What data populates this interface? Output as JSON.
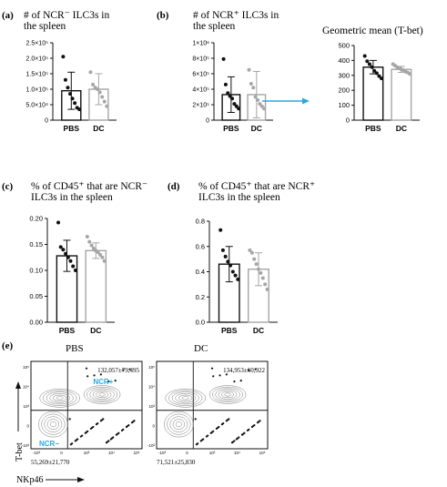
{
  "colors": {
    "black": "#111111",
    "gray": "#a6a6a6",
    "accent": "#2aa8e0"
  },
  "chart_data": [
    {
      "id": "a",
      "type": "bar",
      "panel_label": "(a)",
      "title_lines": [
        "# of NCR⁻ ILC3s in",
        "the spleen"
      ],
      "categories": [
        "PBS",
        "DC"
      ],
      "ylim": [
        0,
        250000
      ],
      "yticks": [
        {
          "value": 0,
          "label": "0"
        },
        {
          "value": 50000,
          "label": "5.0×10⁴"
        },
        {
          "value": 100000,
          "label": "1.0×10⁵"
        },
        {
          "value": 150000,
          "label": "1.5×10⁵"
        },
        {
          "value": 200000,
          "label": "2.0×10⁵"
        },
        {
          "value": 250000,
          "label": "2.5×10⁵"
        }
      ],
      "series": [
        {
          "category": "PBS",
          "mean": 95000,
          "err": 60000,
          "color": "black",
          "points": [
            205000,
            130000,
            105000,
            85000,
            70000,
            55000,
            40000,
            35000
          ]
        },
        {
          "category": "DC",
          "mean": 100000,
          "err": 50000,
          "color": "gray",
          "points": [
            155000,
            115000,
            105000,
            100000,
            90000,
            75000,
            60000,
            45000
          ]
        }
      ]
    },
    {
      "id": "b",
      "type": "bar",
      "panel_label": "(b)",
      "title_lines": [
        "# of NCR⁺ ILC3s in",
        "the spleen"
      ],
      "categories": [
        "PBS",
        "DC"
      ],
      "ylim": [
        0,
        1000000
      ],
      "yticks": [
        {
          "value": 0,
          "label": "0"
        },
        {
          "value": 200000,
          "label": "2×10⁵"
        },
        {
          "value": 400000,
          "label": "4×10⁵"
        },
        {
          "value": 600000,
          "label": "6×10⁵"
        },
        {
          "value": 800000,
          "label": "8×10⁵"
        },
        {
          "value": 1000000,
          "label": "1×10⁶"
        }
      ],
      "series": [
        {
          "category": "PBS",
          "mean": 330000,
          "err": 230000,
          "color": "black",
          "points": [
            790000,
            460000,
            350000,
            310000,
            280000,
            210000,
            180000,
            150000
          ]
        },
        {
          "category": "DC",
          "mean": 330000,
          "err": 300000,
          "color": "gray",
          "points": [
            650000,
            470000,
            420000,
            300000,
            260000,
            210000,
            180000,
            150000
          ]
        }
      ]
    },
    {
      "id": "geo",
      "type": "bar",
      "panel_label": "",
      "title_lines": [
        "Geometric mean (T-bet)"
      ],
      "categories": [
        "PBS",
        "DC"
      ],
      "ylim": [
        0,
        500
      ],
      "yticks": [
        {
          "value": 0,
          "label": "0"
        },
        {
          "value": 100,
          "label": "100"
        },
        {
          "value": 200,
          "label": "200"
        },
        {
          "value": 300,
          "label": "300"
        },
        {
          "value": 400,
          "label": "400"
        },
        {
          "value": 500,
          "label": "500"
        }
      ],
      "series": [
        {
          "category": "PBS",
          "mean": 355,
          "err": 45,
          "color": "black",
          "points": [
            430,
            395,
            375,
            355,
            330,
            315,
            295,
            280
          ]
        },
        {
          "category": "DC",
          "mean": 340,
          "err": 20,
          "color": "gray",
          "points": [
            375,
            365,
            355,
            350,
            340,
            335,
            325,
            320,
            310
          ]
        }
      ]
    },
    {
      "id": "c",
      "type": "bar",
      "panel_label": "(c)",
      "title_lines": [
        "% of CD45⁺ that are NCR⁻",
        "ILC3s in the spleen"
      ],
      "categories": [
        "PBS",
        "DC"
      ],
      "ylim": [
        0,
        0.2
      ],
      "yticks": [
        {
          "value": 0,
          "label": "0.00"
        },
        {
          "value": 0.05,
          "label": "0.05"
        },
        {
          "value": 0.1,
          "label": "0.10"
        },
        {
          "value": 0.15,
          "label": "0.15"
        },
        {
          "value": 0.2,
          "label": "0.20"
        }
      ],
      "series": [
        {
          "category": "PBS",
          "mean": 0.128,
          "err": 0.03,
          "color": "black",
          "points": [
            0.192,
            0.145,
            0.14,
            0.132,
            0.125,
            0.118,
            0.108,
            0.1
          ]
        },
        {
          "category": "DC",
          "mean": 0.138,
          "err": 0.015,
          "color": "gray",
          "points": [
            0.165,
            0.155,
            0.148,
            0.142,
            0.138,
            0.135,
            0.13,
            0.125,
            0.118
          ]
        }
      ]
    },
    {
      "id": "d",
      "type": "bar",
      "panel_label": "(d)",
      "title_lines": [
        "% of CD45⁺ that are NCR⁺",
        "ILC3s in the spleen"
      ],
      "categories": [
        "PBS",
        "DC"
      ],
      "ylim": [
        0,
        0.8
      ],
      "yticks": [
        {
          "value": 0,
          "label": "0.0"
        },
        {
          "value": 0.2,
          "label": "0.2"
        },
        {
          "value": 0.4,
          "label": "0.4"
        },
        {
          "value": 0.6,
          "label": "0.6"
        },
        {
          "value": 0.8,
          "label": "0.8"
        }
      ],
      "series": [
        {
          "category": "PBS",
          "mean": 0.46,
          "err": 0.14,
          "color": "black",
          "points": [
            0.73,
            0.57,
            0.52,
            0.48,
            0.45,
            0.4,
            0.37,
            0.34
          ]
        },
        {
          "category": "DC",
          "mean": 0.42,
          "err": 0.13,
          "color": "gray",
          "points": [
            0.57,
            0.55,
            0.5,
            0.46,
            0.42,
            0.39,
            0.35,
            0.3,
            0.26
          ]
        }
      ]
    }
  ],
  "flow": {
    "panel_label": "(e)",
    "ylabel": "T-bet",
    "xlabel": "NKp46",
    "y_ticks": [
      "10⁵",
      "10⁴",
      "10³",
      "0",
      "-10³"
    ],
    "x_ticks": [
      "-10³",
      "0",
      "10³",
      "10⁴",
      "10⁵"
    ],
    "plots": [
      {
        "title": "PBS",
        "upper_right": "132,057±79,495",
        "lower_left": "55,269±21,770",
        "label_ncr_pos": "NCR+",
        "label_ncr_neg": "NCR−"
      },
      {
        "title": "DC",
        "upper_right": "134,953±60,922",
        "lower_left": "71,521±25,830"
      }
    ]
  }
}
